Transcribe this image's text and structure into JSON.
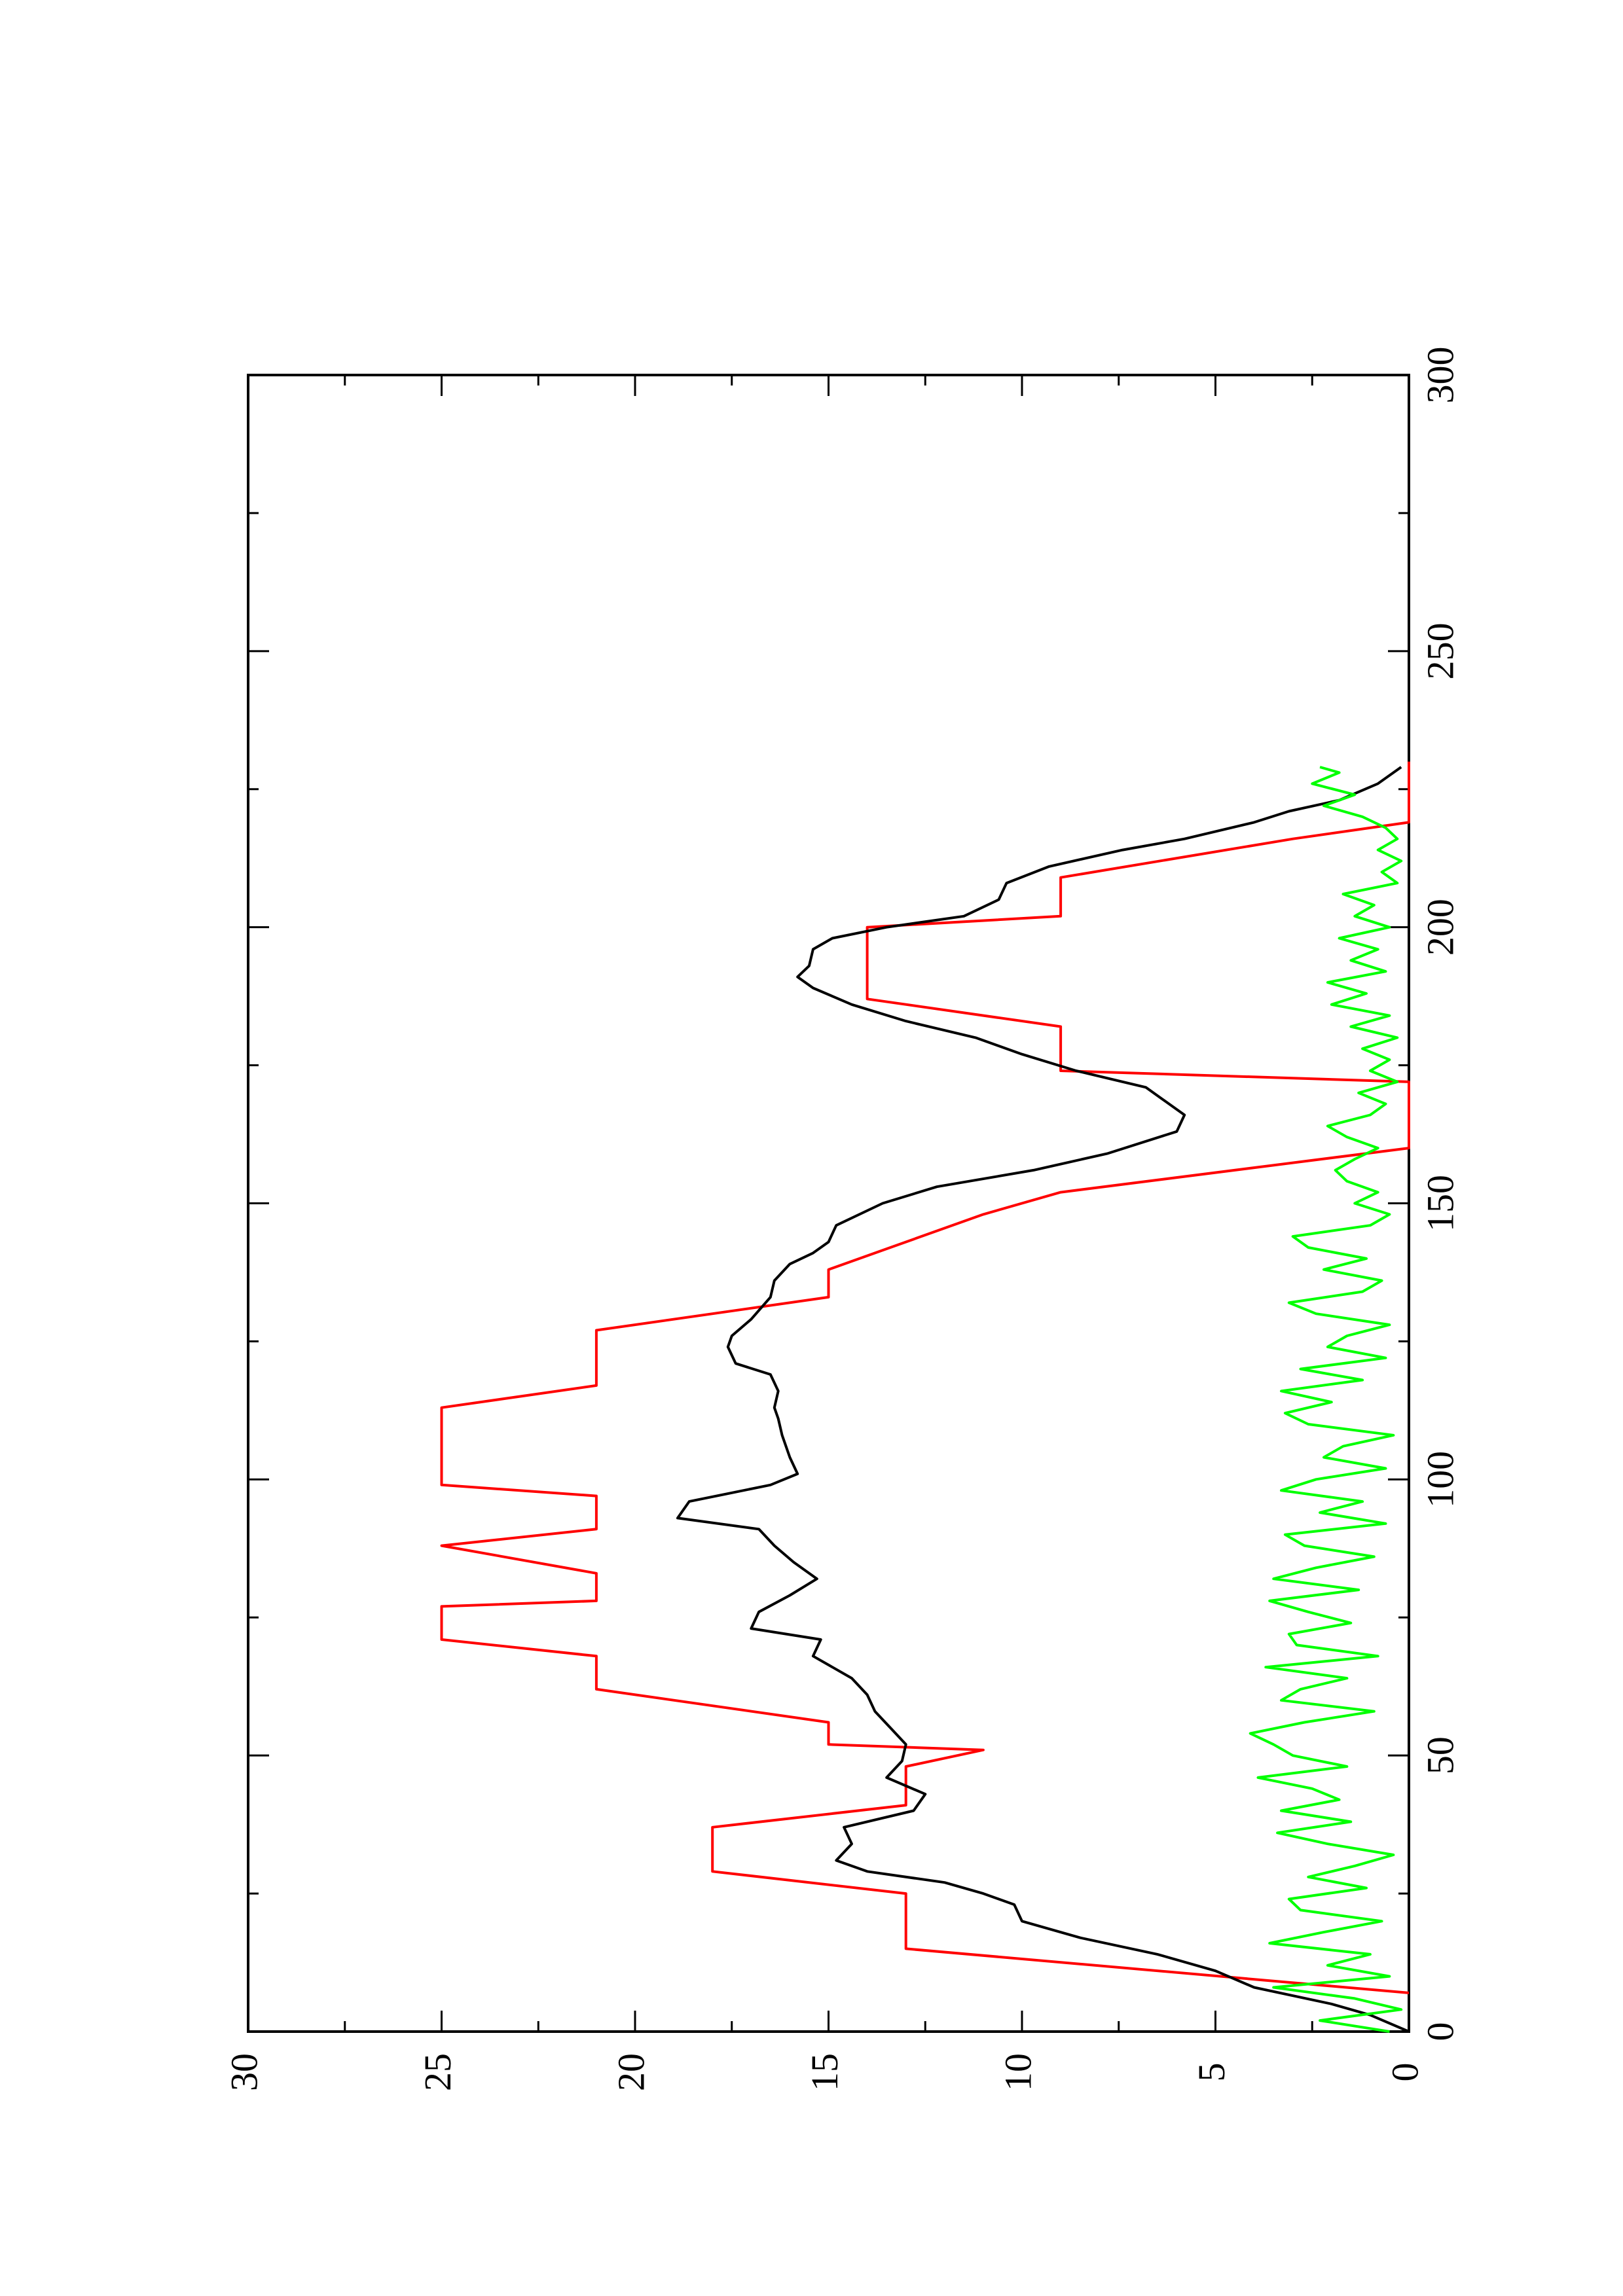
{
  "chart_data": {
    "type": "line",
    "rotated": "90deg-counterclockwise",
    "title": "",
    "xlabel": "",
    "ylabel": "",
    "xlim": [
      0,
      300
    ],
    "ylim": [
      0,
      30
    ],
    "x_ticks_major": [
      0,
      50,
      100,
      150,
      200,
      250,
      300
    ],
    "x_tick_labels": [
      "0",
      "50",
      "100",
      "150",
      "200",
      "250",
      "300"
    ],
    "x_ticks_minor": [
      25,
      75,
      125,
      175,
      225,
      275
    ],
    "y_ticks_major": [
      0,
      5,
      10,
      15,
      20,
      25,
      30
    ],
    "y_tick_labels": [
      "0",
      "5",
      "10",
      "15",
      "20",
      "25",
      "30"
    ],
    "y_ticks_minor": [
      2.5,
      7.5,
      12.5,
      17.5,
      22.5,
      27.5
    ],
    "grid": false,
    "legend": "none",
    "series": [
      {
        "color": "#ff0000",
        "points": [
          [
            7,
            0
          ],
          [
            15,
            13
          ],
          [
            25,
            13
          ],
          [
            29,
            18
          ],
          [
            37,
            18
          ],
          [
            41,
            13
          ],
          [
            48,
            13
          ],
          [
            51,
            11
          ],
          [
            52,
            15
          ],
          [
            56,
            15
          ],
          [
            62,
            21
          ],
          [
            68,
            21
          ],
          [
            71,
            25
          ],
          [
            77,
            25
          ],
          [
            78,
            21
          ],
          [
            83,
            21
          ],
          [
            88,
            25
          ],
          [
            91,
            21
          ],
          [
            97,
            21
          ],
          [
            99,
            25
          ],
          [
            113,
            25
          ],
          [
            117,
            21
          ],
          [
            127,
            21
          ],
          [
            133,
            15
          ],
          [
            138,
            15
          ],
          [
            148,
            11
          ],
          [
            152,
            9
          ],
          [
            160,
            0
          ],
          [
            172,
            0
          ],
          [
            174,
            9
          ],
          [
            182,
            9
          ],
          [
            187,
            14
          ],
          [
            200,
            14
          ],
          [
            202,
            9
          ],
          [
            209,
            9
          ],
          [
            216,
            3
          ],
          [
            219,
            0
          ],
          [
            230,
            0
          ]
        ]
      },
      {
        "color": "#000000",
        "points": [
          [
            0,
            0
          ],
          [
            3,
            1
          ],
          [
            5,
            2
          ],
          [
            8,
            4
          ],
          [
            11,
            5
          ],
          [
            14,
            6.5
          ],
          [
            17,
            8.5
          ],
          [
            20,
            10
          ],
          [
            23,
            10.2
          ],
          [
            25,
            11
          ],
          [
            27,
            12
          ],
          [
            29,
            14
          ],
          [
            31,
            14.8
          ],
          [
            34,
            14.4
          ],
          [
            37,
            14.6
          ],
          [
            40,
            12.8
          ],
          [
            43,
            12.5
          ],
          [
            46,
            13.5
          ],
          [
            49,
            13.1
          ],
          [
            52,
            13
          ],
          [
            55,
            13.4
          ],
          [
            58,
            13.8
          ],
          [
            61,
            14
          ],
          [
            64,
            14.4
          ],
          [
            68,
            15.4
          ],
          [
            71,
            15.2
          ],
          [
            73,
            17
          ],
          [
            76,
            16.8
          ],
          [
            79,
            16
          ],
          [
            82,
            15.3
          ],
          [
            85,
            15.9
          ],
          [
            88,
            16.4
          ],
          [
            91,
            16.8
          ],
          [
            93,
            18.9
          ],
          [
            96,
            18.6
          ],
          [
            99,
            16.5
          ],
          [
            101,
            15.8
          ],
          [
            104,
            16
          ],
          [
            108,
            16.2
          ],
          [
            111,
            16.3
          ],
          [
            113,
            16.4
          ],
          [
            116,
            16.3
          ],
          [
            119,
            16.5
          ],
          [
            121,
            17.4
          ],
          [
            124,
            17.6
          ],
          [
            126,
            17.5
          ],
          [
            129,
            17
          ],
          [
            133,
            16.5
          ],
          [
            136,
            16.4
          ],
          [
            139,
            16
          ],
          [
            141,
            15.4
          ],
          [
            143,
            15
          ],
          [
            146,
            14.8
          ],
          [
            150,
            13.6
          ],
          [
            153,
            12.2
          ],
          [
            156,
            9.7
          ],
          [
            159,
            7.8
          ],
          [
            163,
            6
          ],
          [
            166,
            5.8
          ],
          [
            169,
            6.4
          ],
          [
            171,
            6.8
          ],
          [
            174,
            8.6
          ],
          [
            177,
            10
          ],
          [
            180,
            11.2
          ],
          [
            183,
            13
          ],
          [
            186,
            14.4
          ],
          [
            189,
            15.4
          ],
          [
            191,
            15.8
          ],
          [
            193,
            15.5
          ],
          [
            196,
            15.4
          ],
          [
            198,
            14.9
          ],
          [
            200,
            13.5
          ],
          [
            202,
            11.5
          ],
          [
            205,
            10.6
          ],
          [
            208,
            10.4
          ],
          [
            211,
            9.3
          ],
          [
            214,
            7.4
          ],
          [
            216,
            5.8
          ],
          [
            219,
            4
          ],
          [
            221,
            3.1
          ],
          [
            223,
            1.8
          ],
          [
            226,
            0.8
          ],
          [
            229,
            0.2
          ]
        ]
      },
      {
        "color": "#00ff00",
        "points": [
          [
            0,
            0.5
          ],
          [
            2,
            2.3
          ],
          [
            4,
            0.2
          ],
          [
            6,
            1.4
          ],
          [
            8,
            3.5
          ],
          [
            10,
            0.5
          ],
          [
            12,
            2.1
          ],
          [
            14,
            1
          ],
          [
            16,
            3.6
          ],
          [
            18,
            2.2
          ],
          [
            20,
            0.7
          ],
          [
            22,
            2.8
          ],
          [
            24,
            3.1
          ],
          [
            26,
            1.1
          ],
          [
            28,
            2.6
          ],
          [
            30,
            1.4
          ],
          [
            32,
            0.4
          ],
          [
            34,
            2.1
          ],
          [
            36,
            3.4
          ],
          [
            38,
            1.5
          ],
          [
            40,
            3.3
          ],
          [
            42,
            1.8
          ],
          [
            44,
            2.5
          ],
          [
            46,
            3.9
          ],
          [
            48,
            1.6
          ],
          [
            50,
            3
          ],
          [
            52,
            3.5
          ],
          [
            54,
            4.1
          ],
          [
            56,
            2.7
          ],
          [
            58,
            0.9
          ],
          [
            60,
            3.3
          ],
          [
            62,
            2.8
          ],
          [
            64,
            1.6
          ],
          [
            66,
            3.7
          ],
          [
            68,
            0.8
          ],
          [
            70,
            2.9
          ],
          [
            72,
            3.1
          ],
          [
            74,
            1.5
          ],
          [
            76,
            2.6
          ],
          [
            78,
            3.6
          ],
          [
            80,
            1.3
          ],
          [
            82,
            3.5
          ],
          [
            84,
            2.4
          ],
          [
            86,
            0.9
          ],
          [
            88,
            2.7
          ],
          [
            90,
            3.2
          ],
          [
            92,
            0.6
          ],
          [
            94,
            2.3
          ],
          [
            96,
            1.2
          ],
          [
            98,
            3.3
          ],
          [
            100,
            2.4
          ],
          [
            102,
            0.6
          ],
          [
            104,
            2.2
          ],
          [
            106,
            1.7
          ],
          [
            108,
            0.4
          ],
          [
            110,
            2.6
          ],
          [
            112,
            3.2
          ],
          [
            114,
            2
          ],
          [
            116,
            3.3
          ],
          [
            118,
            1.2
          ],
          [
            120,
            2.8
          ],
          [
            122,
            0.6
          ],
          [
            124,
            2.1
          ],
          [
            126,
            1.6
          ],
          [
            128,
            0.5
          ],
          [
            130,
            2.4
          ],
          [
            132,
            3.1
          ],
          [
            134,
            1.2
          ],
          [
            136,
            0.7
          ],
          [
            138,
            2.2
          ],
          [
            140,
            1.1
          ],
          [
            142,
            2.6
          ],
          [
            144,
            3
          ],
          [
            146,
            1
          ],
          [
            148,
            0.5
          ],
          [
            150,
            1.4
          ],
          [
            152,
            0.8
          ],
          [
            154,
            1.6
          ],
          [
            156,
            1.9
          ],
          [
            158,
            1.4
          ],
          [
            160,
            0.8
          ],
          [
            162,
            1.6
          ],
          [
            164,
            2.1
          ],
          [
            166,
            1
          ],
          [
            168,
            0.6
          ],
          [
            170,
            1.3
          ],
          [
            172,
            0.3
          ],
          [
            174,
            1
          ],
          [
            176,
            0.5
          ],
          [
            178,
            1.2
          ],
          [
            180,
            0.3
          ],
          [
            182,
            1.5
          ],
          [
            184,
            0.5
          ],
          [
            186,
            2
          ],
          [
            188,
            1.1
          ],
          [
            190,
            2.1
          ],
          [
            192,
            0.6
          ],
          [
            194,
            1.5
          ],
          [
            196,
            0.8
          ],
          [
            198,
            1.8
          ],
          [
            200,
            0.5
          ],
          [
            202,
            1.4
          ],
          [
            204,
            0.9
          ],
          [
            206,
            1.7
          ],
          [
            208,
            0.3
          ],
          [
            210,
            0.7
          ],
          [
            212,
            0.2
          ],
          [
            214,
            0.8
          ],
          [
            216,
            0.3
          ],
          [
            218,
            0.6
          ],
          [
            220,
            1.2
          ],
          [
            222,
            2.2
          ],
          [
            224,
            1.4
          ],
          [
            226,
            2.5
          ],
          [
            228,
            1.8
          ],
          [
            229,
            2.3
          ]
        ]
      }
    ]
  }
}
